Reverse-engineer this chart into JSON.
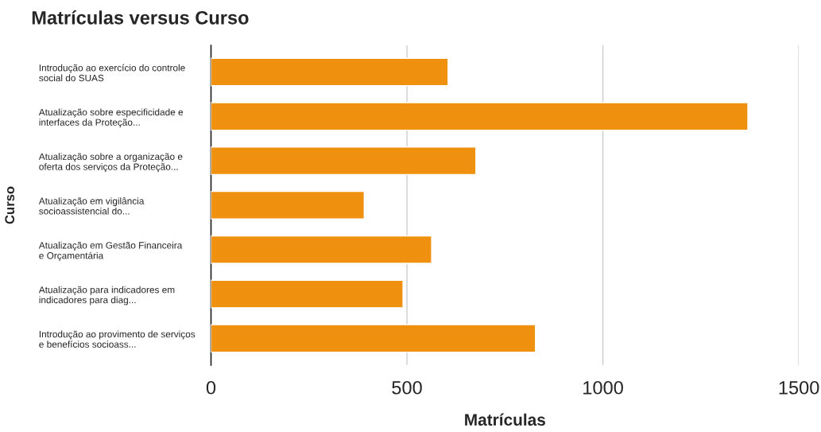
{
  "chart_data": {
    "type": "bar",
    "orientation": "horizontal",
    "title": "Matrículas versus Curso",
    "xlabel": "Matrículas",
    "ylabel": "Curso",
    "categories": [
      "Introdução ao exercício do controle\nsocial do SUAS",
      "Atualização sobre especificidade e\ninterfaces da Proteção...",
      "Atualização sobre a organização e\noferta dos serviços da Proteção...",
      "Atualização em vigilância\nsocioassistencial do...",
      "Atualização em Gestão Financeira\ne Orçamentária",
      "Atualização para indicadores em\nindicadores para diag...",
      "Introdução ao provimento de serviços\ne benefícios socioass..."
    ],
    "values": [
      605,
      1370,
      676,
      391,
      563,
      490,
      828
    ],
    "color": "#f0900f",
    "xlim": [
      0,
      1500
    ],
    "xticks": [
      0,
      500,
      1000,
      1500
    ],
    "grid": "x",
    "legend": false
  }
}
